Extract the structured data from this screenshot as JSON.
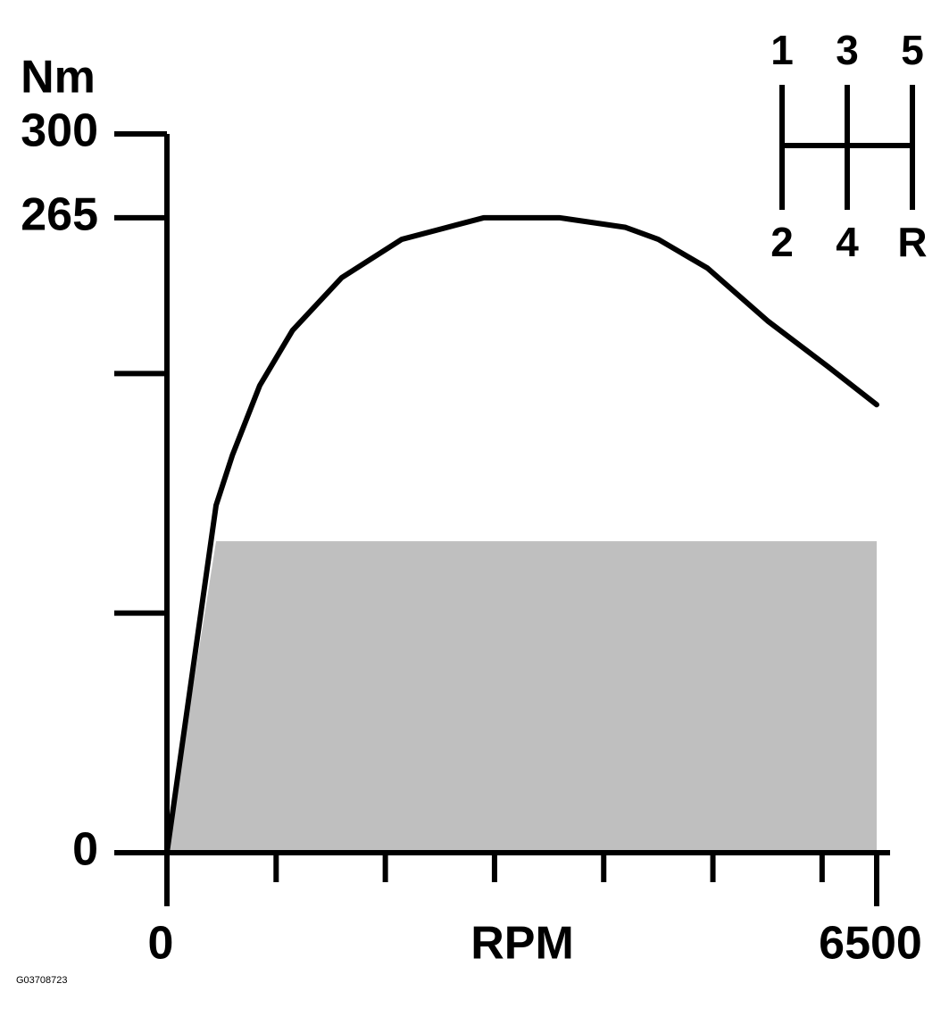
{
  "chart_data": {
    "type": "line",
    "ylabel": "Nm",
    "xlabel": "RPM",
    "xlim": [
      0,
      6500
    ],
    "ylim": [
      0,
      300
    ],
    "xticks": [
      0,
      6500
    ],
    "xticks_unlabeled": [
      1000,
      2000,
      3000,
      4000,
      5000,
      6000
    ],
    "yticks": [
      0,
      265,
      300
    ],
    "yticks_unlabeled": [
      100,
      200
    ],
    "series": [
      {
        "kind": "line",
        "color": "#000000",
        "x": [
          0,
          450,
          600,
          850,
          1150,
          1600,
          2150,
          2900,
          3600,
          4200,
          4500,
          4950,
          5500,
          6050,
          6500
        ],
        "values": [
          0,
          145,
          166,
          195,
          218,
          240,
          256,
          265,
          265,
          261,
          256,
          244,
          222,
          203,
          187
        ]
      },
      {
        "kind": "area",
        "color": "#bfbfbf",
        "x": [
          0,
          450,
          6500
        ],
        "values": [
          0,
          130,
          130
        ]
      }
    ],
    "shift_pattern": {
      "top": [
        "1",
        "3",
        "5"
      ],
      "bottom": [
        "2",
        "4",
        "R"
      ]
    },
    "footer": "G03708723"
  }
}
